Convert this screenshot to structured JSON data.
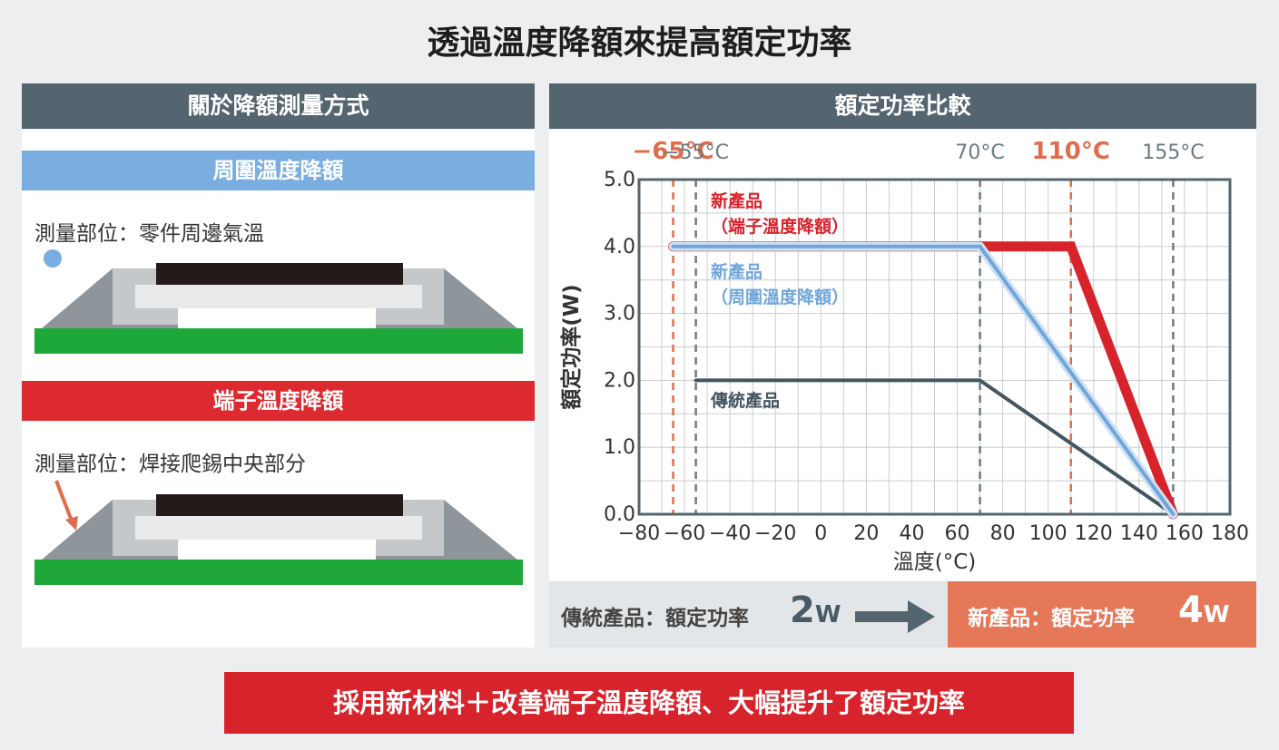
{
  "title": "透過溫度降額來提高額定功率",
  "left_panel": {
    "header": "關於降額測量方式",
    "ambient": {
      "band_label": "周圍溫度降額",
      "measure_text": "測量部位：零件周邊氣溫"
    },
    "terminal": {
      "band_label": "端子溫度降額",
      "measure_text": "測量部位：焊接爬錫中央部分"
    }
  },
  "right_panel": {
    "header": "額定功率比較"
  },
  "chart_data": {
    "type": "line",
    "xlabel": "溫度(°C)",
    "ylabel": "額定功率(W)",
    "xlim": [
      -80,
      180
    ],
    "ylim": [
      0,
      5
    ],
    "x_ticks": [
      "−80",
      "−60",
      "−40",
      "−20",
      "0",
      "20",
      "40",
      "60",
      "80",
      "100",
      "120",
      "140",
      "160",
      "180"
    ],
    "y_ticks": [
      "0.0",
      "1.0",
      "2.0",
      "3.0",
      "4.0",
      "5.0"
    ],
    "grid": true,
    "reference_lines": [
      {
        "x": -65,
        "label": "−65°C",
        "color": "#e06c4e",
        "emphasis": true
      },
      {
        "x": -55,
        "label": "−55°C",
        "color": "#6b7a84",
        "emphasis": false
      },
      {
        "x": 70,
        "label": "70°C",
        "color": "#6b7a84",
        "emphasis": false
      },
      {
        "x": 110,
        "label": "110°C",
        "color": "#e06c4e",
        "emphasis": true
      },
      {
        "x": 155,
        "label": "155°C",
        "color": "#6b7a84",
        "emphasis": false
      }
    ],
    "series": [
      {
        "name": "新產品（端子溫度降額）",
        "label_lines": [
          "新產品",
          "（端子溫度降額）"
        ],
        "color": "#d7232b",
        "x": [
          -65,
          110,
          155
        ],
        "y": [
          4.0,
          4.0,
          0.0
        ]
      },
      {
        "name": "新產品（周圍溫度降額）",
        "label_lines": [
          "新產品",
          "（周圍溫度降額）"
        ],
        "color": "#6fa6dc",
        "x": [
          -65,
          70,
          155
        ],
        "y": [
          4.0,
          4.0,
          0.0
        ]
      },
      {
        "name": "傳統產品",
        "label_lines": [
          "傳統產品"
        ],
        "color": "#435560",
        "x": [
          -55,
          70,
          155
        ],
        "y": [
          2.0,
          2.0,
          0.0
        ]
      }
    ]
  },
  "comparison": {
    "old_label": "傳統產品：額定功率",
    "old_value": "2",
    "old_unit": "W",
    "new_label": "新產品：額定功率",
    "new_value": "4",
    "new_unit": "W"
  },
  "conclusion": "採用新材料＋改善端子溫度降額、大幅提升了額定功率",
  "colors": {
    "header_bg": "#55656f",
    "ambient_blue": "#7aaee0",
    "terminal_red": "#dd2a30",
    "new_bg": "#e57859",
    "pcb_green": "#1fa83a"
  }
}
